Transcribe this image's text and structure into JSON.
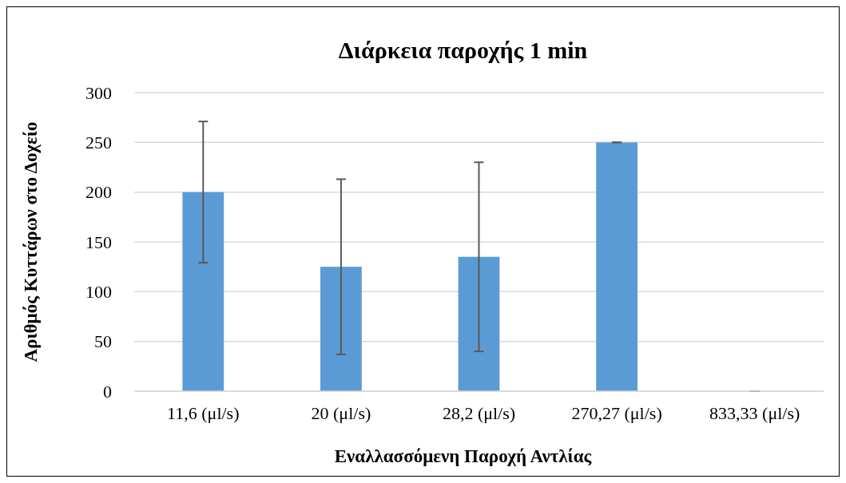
{
  "chart_data": {
    "type": "bar",
    "title": "Διάρκεια παροχής 1 min",
    "xlabel": "Εναλλασσόμενη Παροχή Αντλίας",
    "ylabel": "Αριθμός Κυττάρων στο Δοχείο",
    "categories": [
      "11,6 (μl/s)",
      "20 (μl/s)",
      "28,2 (μl/s)",
      "270,27 (μl/s)",
      "833,33 (μl/s)"
    ],
    "values": [
      200,
      125,
      135,
      250,
      0
    ],
    "errors": [
      71,
      88,
      95,
      0,
      0
    ],
    "color": "#5b9bd5",
    "ylim": [
      0,
      300
    ],
    "yticks": [
      0,
      50,
      100,
      150,
      200,
      250,
      300
    ],
    "grid": "y"
  }
}
